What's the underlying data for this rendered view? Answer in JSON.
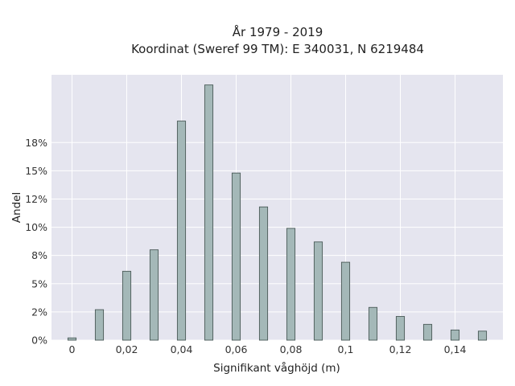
{
  "chart_data": {
    "type": "bar",
    "title_lines": [
      "År 1979 - 2019",
      "Koordinat (Sweref 99 TM): E 340031, N 6219484"
    ],
    "xlabel": "Signifikant våghöjd (m)",
    "ylabel": "Andel",
    "x": [
      0,
      0.01,
      0.02,
      0.03,
      0.04,
      0.05,
      0.06,
      0.07,
      0.08,
      0.09,
      0.1,
      0.11,
      0.12,
      0.13,
      0.14,
      0.15
    ],
    "values": [
      0.2,
      2.7,
      6.1,
      8.0,
      19.4,
      22.6,
      14.8,
      11.8,
      9.9,
      8.7,
      6.9,
      2.9,
      2.1,
      1.4,
      0.9,
      0.8
    ],
    "xlim": [
      -0.0075,
      0.1575
    ],
    "ylim": [
      0,
      23.5
    ],
    "x_ticks": [
      0,
      0.02,
      0.04,
      0.06,
      0.08,
      0.1,
      0.12,
      0.14
    ],
    "x_tick_labels": [
      "0",
      "0,02",
      "0,04",
      "0,06",
      "0,08",
      "0,1",
      "0,12",
      "0,14"
    ],
    "y_ticks": [
      0,
      2.5,
      5,
      7.5,
      10,
      12.5,
      15,
      17.5
    ],
    "y_tick_labels": [
      "0%",
      "2%",
      "5%",
      "8%",
      "10%",
      "12%",
      "15%",
      "18%"
    ],
    "grid": true,
    "colors": {
      "bar_fill": "#a4b8b8",
      "bar_edge": "#4a5a58",
      "plot_bg": "#e5e5ef"
    }
  }
}
